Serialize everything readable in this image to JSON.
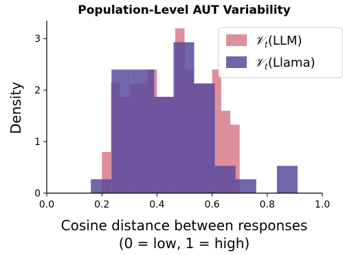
{
  "chart_data": {
    "type": "bar",
    "title": "Population-Level AUT Variability",
    "xlabel_line1": "Cosine distance between responses",
    "xlabel_line2": "(0 = low, 1 = high)",
    "ylabel": "Density",
    "xlim": [
      0.0,
      1.0
    ],
    "ylim": [
      0,
      3.35
    ],
    "xticks": [
      "0.0",
      "0.2",
      "0.4",
      "0.6",
      "0.8",
      "1.0"
    ],
    "yticks": [
      "0",
      "1",
      "2",
      "3"
    ],
    "grid": false,
    "legend_position": "top-right",
    "series": [
      {
        "name": "LLM",
        "color": "#d4707f",
        "bins": [
          {
            "x0": 0.2,
            "x1": 0.233,
            "value": 0.8
          },
          {
            "x0": 0.233,
            "x1": 0.266,
            "value": 2.15
          },
          {
            "x0": 0.266,
            "x1": 0.3,
            "value": 1.87
          },
          {
            "x0": 0.3,
            "x1": 0.333,
            "value": 2.13
          },
          {
            "x0": 0.333,
            "x1": 0.366,
            "value": 2.13
          },
          {
            "x0": 0.366,
            "x1": 0.4,
            "value": 2.4
          },
          {
            "x0": 0.4,
            "x1": 0.433,
            "value": 1.87
          },
          {
            "x0": 0.433,
            "x1": 0.466,
            "value": 1.87
          },
          {
            "x0": 0.466,
            "x1": 0.5,
            "value": 3.2
          },
          {
            "x0": 0.5,
            "x1": 0.533,
            "value": 2.4
          },
          {
            "x0": 0.533,
            "x1": 0.566,
            "value": 2.13
          },
          {
            "x0": 0.566,
            "x1": 0.6,
            "value": 2.13
          },
          {
            "x0": 0.6,
            "x1": 0.633,
            "value": 2.4
          },
          {
            "x0": 0.633,
            "x1": 0.666,
            "value": 1.6
          },
          {
            "x0": 0.666,
            "x1": 0.7,
            "value": 1.33
          }
        ]
      },
      {
        "name": "Llama",
        "color": "#5b4a9e",
        "bins": [
          {
            "x0": 0.16,
            "x1": 0.235,
            "value": 0.27
          },
          {
            "x0": 0.235,
            "x1": 0.305,
            "value": 2.4
          },
          {
            "x0": 0.305,
            "x1": 0.39,
            "value": 2.4
          },
          {
            "x0": 0.39,
            "x1": 0.46,
            "value": 1.87
          },
          {
            "x0": 0.46,
            "x1": 0.535,
            "value": 2.93
          },
          {
            "x0": 0.535,
            "x1": 0.61,
            "value": 2.13
          },
          {
            "x0": 0.61,
            "x1": 0.685,
            "value": 0.53
          },
          {
            "x0": 0.685,
            "x1": 0.76,
            "value": 0.27
          },
          {
            "x0": 0.835,
            "x1": 0.91,
            "value": 0.53
          }
        ]
      }
    ]
  }
}
